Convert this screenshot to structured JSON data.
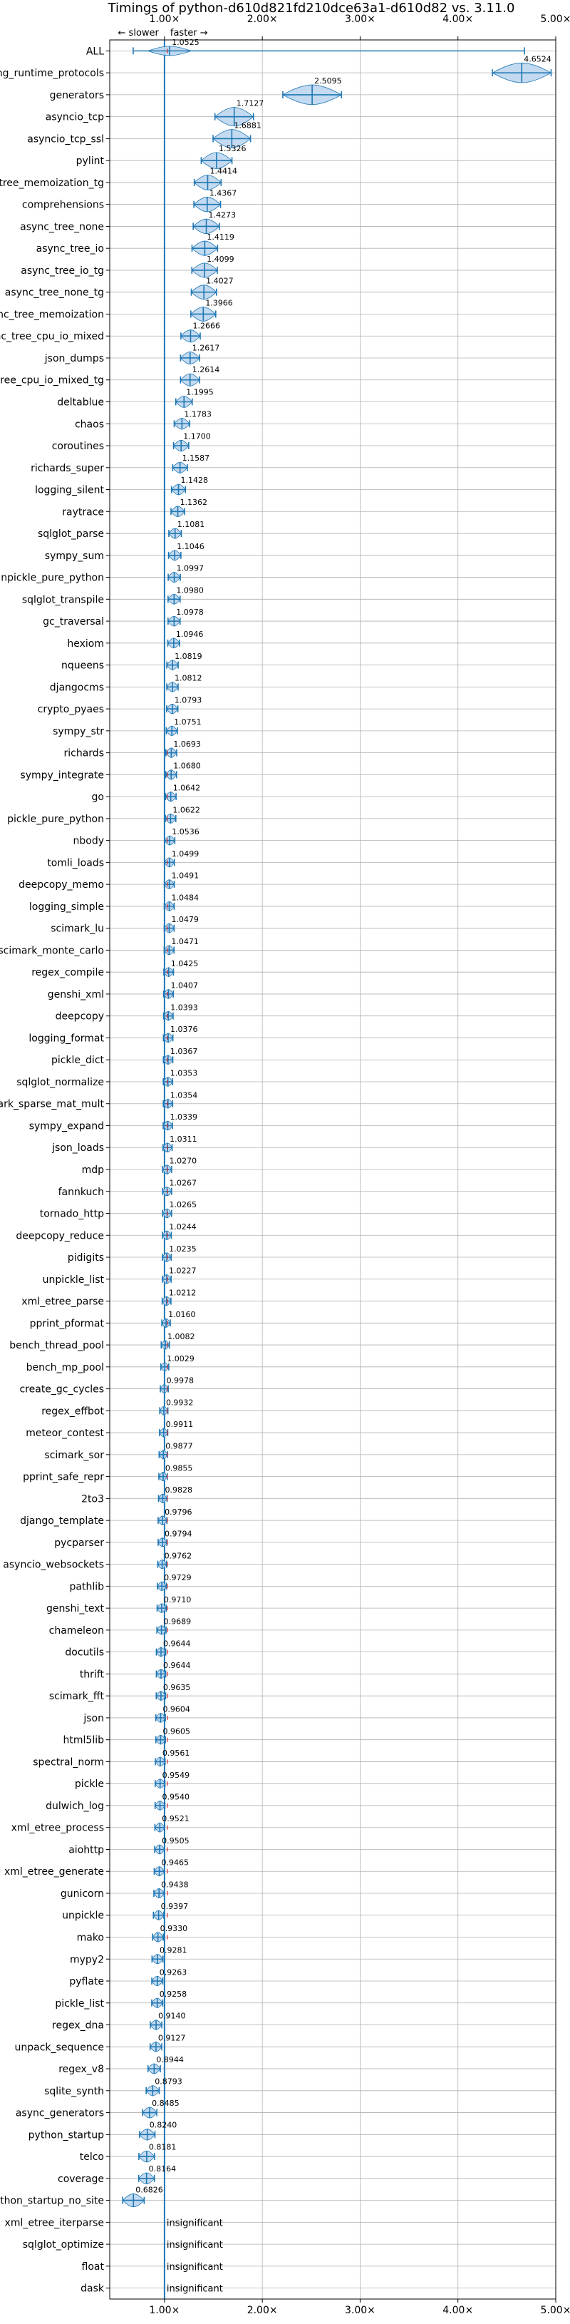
{
  "chart_data": {
    "type": "violin",
    "title": "Timings of python-d610d821fd210dce63a1-d610d82 vs. 3.11.0",
    "x_ticks": [
      "1.00×",
      "2.00×",
      "3.00×",
      "4.00×",
      "5.00×"
    ],
    "x_tick_values": [
      1,
      2,
      3,
      4,
      5
    ],
    "xlim": [
      0.44,
      5.0
    ],
    "x_scale": "linear",
    "direction_left": "← slower",
    "direction_right": "faster →",
    "grid": true,
    "reference_value": 1.0,
    "colors": {
      "violin": "#1f77b4",
      "violin_fill": "#bcd6ee",
      "significant_marker": "#d62728",
      "grid": "#b0b0b0"
    },
    "benchmarks": [
      {
        "name": "ALL",
        "value": 1.0525,
        "label": "1.0525"
      },
      {
        "name": "typing_runtime_protocols",
        "value": 4.6524,
        "label": "4.6524"
      },
      {
        "name": "generators",
        "value": 2.5095,
        "label": "2.5095"
      },
      {
        "name": "asyncio_tcp",
        "value": 1.7127,
        "label": "1.7127"
      },
      {
        "name": "asyncio_tcp_ssl",
        "value": 1.6881,
        "label": "1.6881"
      },
      {
        "name": "pylint",
        "value": 1.5326,
        "label": "1.5326"
      },
      {
        "name": "async_tree_memoization_tg",
        "value": 1.4414,
        "label": "1.4414"
      },
      {
        "name": "comprehensions",
        "value": 1.4367,
        "label": "1.4367"
      },
      {
        "name": "async_tree_none",
        "value": 1.4273,
        "label": "1.4273"
      },
      {
        "name": "async_tree_io",
        "value": 1.4119,
        "label": "1.4119"
      },
      {
        "name": "async_tree_io_tg",
        "value": 1.4099,
        "label": "1.4099"
      },
      {
        "name": "async_tree_none_tg",
        "value": 1.4027,
        "label": "1.4027"
      },
      {
        "name": "async_tree_memoization",
        "value": 1.3966,
        "label": "1.3966"
      },
      {
        "name": "async_tree_cpu_io_mixed",
        "value": 1.2666,
        "label": "1.2666"
      },
      {
        "name": "json_dumps",
        "value": 1.2617,
        "label": "1.2617"
      },
      {
        "name": "async_tree_cpu_io_mixed_tg",
        "value": 1.2614,
        "label": "1.2614"
      },
      {
        "name": "deltablue",
        "value": 1.1995,
        "label": "1.1995"
      },
      {
        "name": "chaos",
        "value": 1.1783,
        "label": "1.1783"
      },
      {
        "name": "coroutines",
        "value": 1.17,
        "label": "1.1700"
      },
      {
        "name": "richards_super",
        "value": 1.1587,
        "label": "1.1587"
      },
      {
        "name": "logging_silent",
        "value": 1.1428,
        "label": "1.1428"
      },
      {
        "name": "raytrace",
        "value": 1.1362,
        "label": "1.1362"
      },
      {
        "name": "sqlglot_parse",
        "value": 1.1081,
        "label": "1.1081"
      },
      {
        "name": "sympy_sum",
        "value": 1.1046,
        "label": "1.1046"
      },
      {
        "name": "unpickle_pure_python",
        "value": 1.0997,
        "label": "1.0997"
      },
      {
        "name": "sqlglot_transpile",
        "value": 1.098,
        "label": "1.0980"
      },
      {
        "name": "gc_traversal",
        "value": 1.0978,
        "label": "1.0978"
      },
      {
        "name": "hexiom",
        "value": 1.0946,
        "label": "1.0946"
      },
      {
        "name": "nqueens",
        "value": 1.0819,
        "label": "1.0819"
      },
      {
        "name": "djangocms",
        "value": 1.0812,
        "label": "1.0812"
      },
      {
        "name": "crypto_pyaes",
        "value": 1.0793,
        "label": "1.0793"
      },
      {
        "name": "sympy_str",
        "value": 1.0751,
        "label": "1.0751"
      },
      {
        "name": "richards",
        "value": 1.0693,
        "label": "1.0693"
      },
      {
        "name": "sympy_integrate",
        "value": 1.068,
        "label": "1.0680"
      },
      {
        "name": "go",
        "value": 1.0642,
        "label": "1.0642"
      },
      {
        "name": "pickle_pure_python",
        "value": 1.0622,
        "label": "1.0622"
      },
      {
        "name": "nbody",
        "value": 1.0536,
        "label": "1.0536"
      },
      {
        "name": "tomli_loads",
        "value": 1.0499,
        "label": "1.0499"
      },
      {
        "name": "deepcopy_memo",
        "value": 1.0491,
        "label": "1.0491"
      },
      {
        "name": "logging_simple",
        "value": 1.0484,
        "label": "1.0484"
      },
      {
        "name": "scimark_lu",
        "value": 1.0479,
        "label": "1.0479"
      },
      {
        "name": "scimark_monte_carlo",
        "value": 1.0471,
        "label": "1.0471"
      },
      {
        "name": "regex_compile",
        "value": 1.0425,
        "label": "1.0425"
      },
      {
        "name": "genshi_xml",
        "value": 1.0407,
        "label": "1.0407"
      },
      {
        "name": "deepcopy",
        "value": 1.0393,
        "label": "1.0393"
      },
      {
        "name": "logging_format",
        "value": 1.0376,
        "label": "1.0376"
      },
      {
        "name": "pickle_dict",
        "value": 1.0367,
        "label": "1.0367"
      },
      {
        "name": "sqlglot_normalize",
        "value": 1.0353,
        "label": "1.0353"
      },
      {
        "name": "scimark_sparse_mat_mult",
        "value": 1.0354,
        "label": "1.0354"
      },
      {
        "name": "sympy_expand",
        "value": 1.0339,
        "label": "1.0339"
      },
      {
        "name": "json_loads",
        "value": 1.0311,
        "label": "1.0311"
      },
      {
        "name": "mdp",
        "value": 1.027,
        "label": "1.0270"
      },
      {
        "name": "fannkuch",
        "value": 1.0267,
        "label": "1.0267"
      },
      {
        "name": "tornado_http",
        "value": 1.0265,
        "label": "1.0265"
      },
      {
        "name": "deepcopy_reduce",
        "value": 1.0244,
        "label": "1.0244"
      },
      {
        "name": "pidigits",
        "value": 1.0235,
        "label": "1.0235"
      },
      {
        "name": "unpickle_list",
        "value": 1.0227,
        "label": "1.0227"
      },
      {
        "name": "xml_etree_parse",
        "value": 1.0212,
        "label": "1.0212"
      },
      {
        "name": "pprint_pformat",
        "value": 1.016,
        "label": "1.0160"
      },
      {
        "name": "bench_thread_pool",
        "value": 1.0082,
        "label": "1.0082"
      },
      {
        "name": "bench_mp_pool",
        "value": 1.0029,
        "label": "1.0029"
      },
      {
        "name": "create_gc_cycles",
        "value": 0.9978,
        "label": "0.9978"
      },
      {
        "name": "regex_effbot",
        "value": 0.9932,
        "label": "0.9932"
      },
      {
        "name": "meteor_contest",
        "value": 0.9911,
        "label": "0.9911"
      },
      {
        "name": "scimark_sor",
        "value": 0.9877,
        "label": "0.9877"
      },
      {
        "name": "pprint_safe_repr",
        "value": 0.9855,
        "label": "0.9855"
      },
      {
        "name": "2to3",
        "value": 0.9828,
        "label": "0.9828"
      },
      {
        "name": "django_template",
        "value": 0.9796,
        "label": "0.9796"
      },
      {
        "name": "pycparser",
        "value": 0.9794,
        "label": "0.9794"
      },
      {
        "name": "asyncio_websockets",
        "value": 0.9762,
        "label": "0.9762"
      },
      {
        "name": "pathlib",
        "value": 0.9729,
        "label": "0.9729"
      },
      {
        "name": "genshi_text",
        "value": 0.971,
        "label": "0.9710"
      },
      {
        "name": "chameleon",
        "value": 0.9689,
        "label": "0.9689"
      },
      {
        "name": "docutils",
        "value": 0.9644,
        "label": "0.9644"
      },
      {
        "name": "thrift",
        "value": 0.9644,
        "label": "0.9644"
      },
      {
        "name": "scimark_fft",
        "value": 0.9635,
        "label": "0.9635"
      },
      {
        "name": "json",
        "value": 0.9604,
        "label": "0.9604"
      },
      {
        "name": "html5lib",
        "value": 0.9605,
        "label": "0.9605"
      },
      {
        "name": "spectral_norm",
        "value": 0.9561,
        "label": "0.9561"
      },
      {
        "name": "pickle",
        "value": 0.9549,
        "label": "0.9549"
      },
      {
        "name": "dulwich_log",
        "value": 0.954,
        "label": "0.9540"
      },
      {
        "name": "xml_etree_process",
        "value": 0.9521,
        "label": "0.9521"
      },
      {
        "name": "aiohttp",
        "value": 0.9505,
        "label": "0.9505"
      },
      {
        "name": "xml_etree_generate",
        "value": 0.9465,
        "label": "0.9465"
      },
      {
        "name": "gunicorn",
        "value": 0.9438,
        "label": "0.9438"
      },
      {
        "name": "unpickle",
        "value": 0.9397,
        "label": "0.9397"
      },
      {
        "name": "mako",
        "value": 0.933,
        "label": "0.9330"
      },
      {
        "name": "mypy2",
        "value": 0.9281,
        "label": "0.9281"
      },
      {
        "name": "pyflate",
        "value": 0.9263,
        "label": "0.9263"
      },
      {
        "name": "pickle_list",
        "value": 0.9258,
        "label": "0.9258"
      },
      {
        "name": "regex_dna",
        "value": 0.914,
        "label": "0.9140"
      },
      {
        "name": "unpack_sequence",
        "value": 0.9127,
        "label": "0.9127"
      },
      {
        "name": "regex_v8",
        "value": 0.8944,
        "label": "0.8944"
      },
      {
        "name": "sqlite_synth",
        "value": 0.8793,
        "label": "0.8793"
      },
      {
        "name": "async_generators",
        "value": 0.8485,
        "label": "0.8485"
      },
      {
        "name": "python_startup",
        "value": 0.824,
        "label": "0.8240"
      },
      {
        "name": "telco",
        "value": 0.8181,
        "label": "0.8181"
      },
      {
        "name": "coverage",
        "value": 0.8164,
        "label": "0.8164"
      },
      {
        "name": "python_startup_no_site",
        "value": 0.6826,
        "label": "0.6826"
      },
      {
        "name": "xml_etree_iterparse",
        "value": null,
        "label": "insignificant"
      },
      {
        "name": "sqlglot_optimize",
        "value": null,
        "label": "insignificant"
      },
      {
        "name": "float",
        "value": null,
        "label": "insignificant"
      },
      {
        "name": "dask",
        "value": null,
        "label": "insignificant"
      }
    ]
  }
}
